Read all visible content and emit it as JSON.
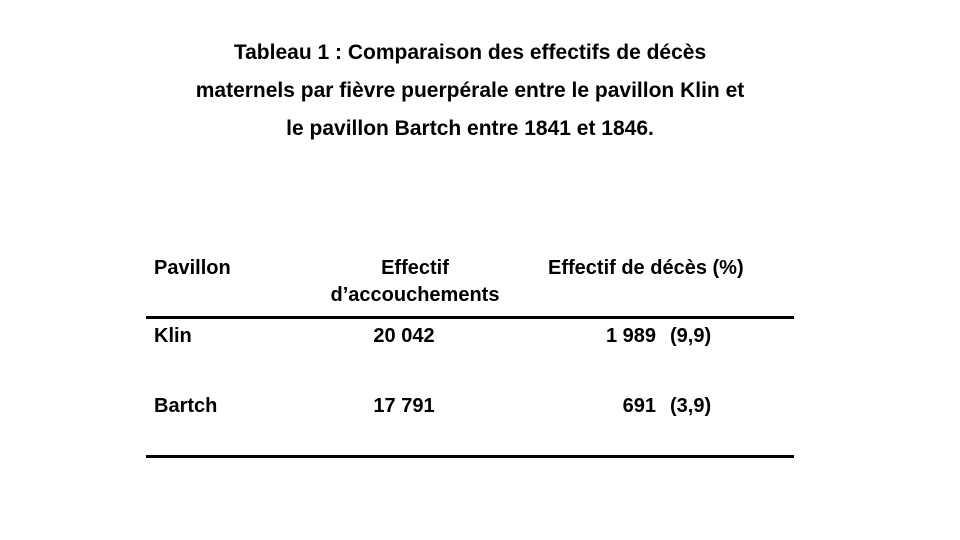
{
  "title": {
    "line1": "Tableau 1 : Comparaison des effectifs de décès",
    "line2": "maternels par fièvre puerpérale entre le pavillon Klin et",
    "line3": "le pavillon Bartch entre 1841 et 1846."
  },
  "table": {
    "headers": {
      "pavillon": "Pavillon",
      "effectif_line1": "Effectif",
      "effectif_line2": "d’accouchements",
      "deces": "Effectif de décès (%)"
    },
    "rows": [
      {
        "pavillon": "Klin",
        "effectif": "20 042",
        "deces": "1 989",
        "pct": "(9,9)"
      },
      {
        "pavillon": "Bartch",
        "effectif": "17 791",
        "deces": "691",
        "pct": "(3,9)"
      }
    ]
  }
}
